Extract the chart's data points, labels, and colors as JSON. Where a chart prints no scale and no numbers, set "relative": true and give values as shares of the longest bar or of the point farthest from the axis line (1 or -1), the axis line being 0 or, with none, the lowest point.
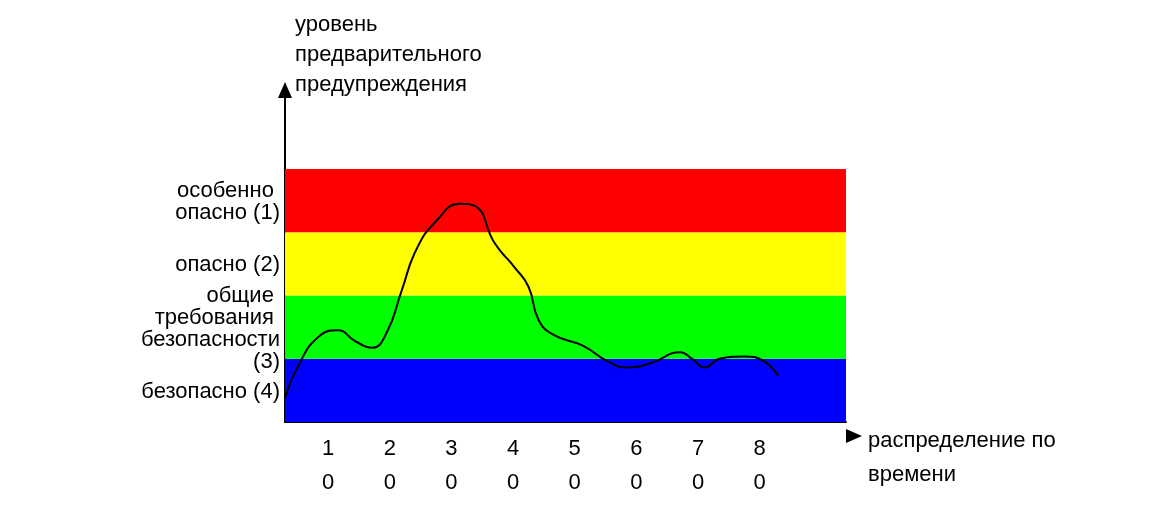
{
  "chart_data": {
    "type": "line",
    "relative": true,
    "xlabel": "распределение по времени",
    "ylabel": "уровень предварительного предупреждения",
    "xlim": [
      3,
      94
    ],
    "xticks": [
      10,
      20,
      30,
      40,
      50,
      60,
      70,
      80
    ],
    "grid": false,
    "marker": "none",
    "line_style": "solid",
    "series": [
      {
        "color": "#000000",
        "x": [
          3,
          5.2,
          8.4,
          11.6,
          14.4,
          17.1,
          19.5,
          21.9,
          24.3,
          27.5,
          31.4,
          33.8,
          37,
          40.2,
          42.5,
          44.1,
          46.5,
          51.3,
          55.2,
          58.4,
          62.4,
          67.1,
          69,
          71.1,
          73.5,
          77.5,
          80.6,
          83
        ],
        "values": [
          0.11,
          0.26,
          0.39,
          0.42,
          0.37,
          0.34,
          0.41,
          0.6,
          0.79,
          0.92,
          1,
          0.99,
          0.82,
          0.71,
          0.62,
          0.47,
          0.4,
          0.35,
          0.28,
          0.25,
          0.27,
          0.32,
          0.29,
          0.25,
          0.29,
          0.3,
          0.28,
          0.21
        ]
      }
    ],
    "bands": [
      {
        "axis": "y",
        "from": 0,
        "to": 0.29,
        "label": "безопасно (4)",
        "color": "#0000ff"
      },
      {
        "axis": "y",
        "from": 0.29,
        "to": 0.58,
        "label": "общие требования безопасности (3)",
        "color": "#00ff00"
      },
      {
        "axis": "y",
        "from": 0.58,
        "to": 0.87,
        "label": "опасно (2)",
        "color": "#ffff00"
      },
      {
        "axis": "y",
        "from": 0.87,
        "to": 1.16,
        "label": "особенно опасно (1)",
        "color": "#ff0000"
      }
    ]
  }
}
